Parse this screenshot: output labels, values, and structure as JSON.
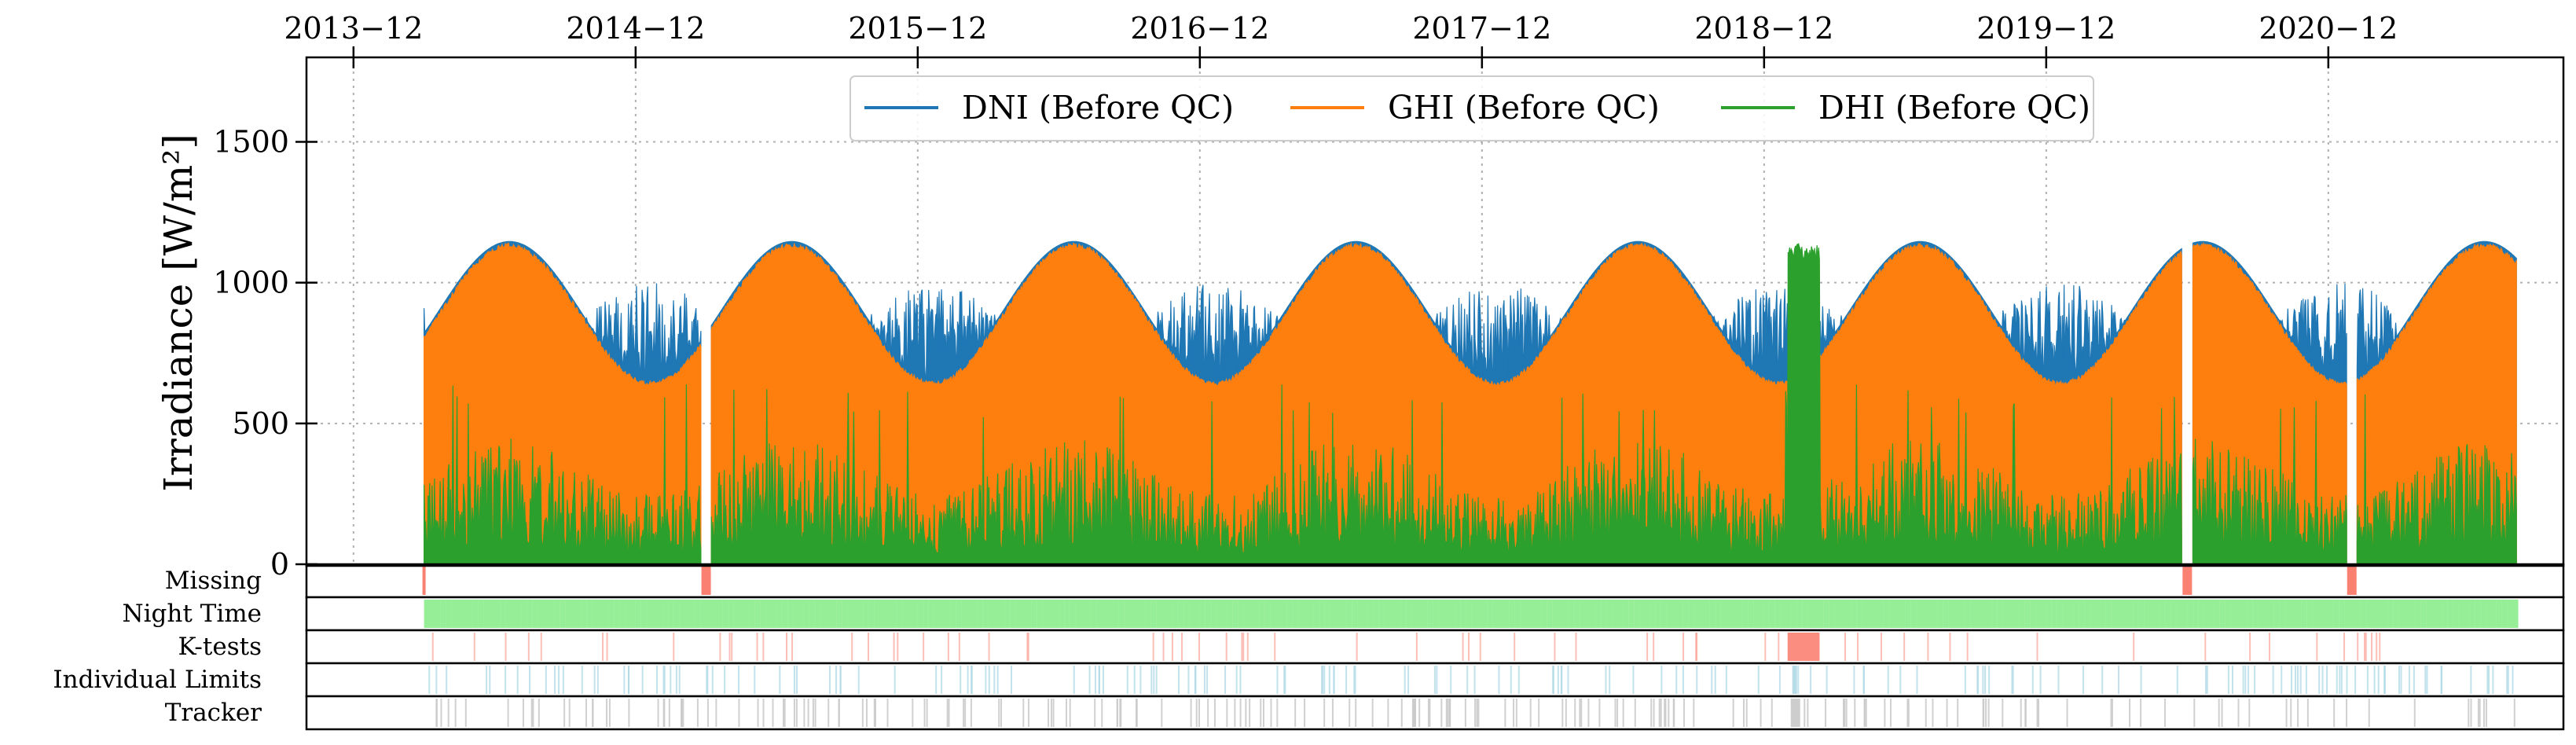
{
  "chart_data": {
    "type": "line",
    "x_axis": {
      "scale": "date",
      "ticks": [
        "2013-12",
        "2014-12",
        "2015-12",
        "2016-12",
        "2017-12",
        "2018-12",
        "2019-12",
        "2020-12"
      ],
      "tick_position": "top",
      "range": [
        "2013-10",
        "2021-10"
      ]
    },
    "y_axis": {
      "label": "Irradiance [W/m²]",
      "ticks": [
        0,
        500,
        1000,
        1500
      ],
      "ylim": [
        0,
        1800
      ]
    },
    "grid": true,
    "legend": {
      "placement": "top-center",
      "columns": 3
    },
    "series": [
      {
        "name": "DNI (Before QC)",
        "color": "#1f77b4",
        "summer_peak": 730,
        "winter_peak": 1000,
        "daily_low": 650
      },
      {
        "name": "GHI (Before QC)",
        "color": "#ff7f0e",
        "summer_peak": 1140,
        "winter_peak": 650
      },
      {
        "name": "DHI (Before QC)",
        "color": "#2ca02c",
        "typical_peak": 450,
        "max_spike": 1140
      }
    ],
    "data_range": [
      "2014-03",
      "2021-08"
    ],
    "gaps": [
      "2015-03",
      "2020-06",
      "2021-01"
    ],
    "qc_flags": [
      {
        "label": "Missing",
        "color": "#fa8072"
      },
      {
        "label": "Night Time",
        "color": "#90ee90"
      },
      {
        "label": "K-tests",
        "color": "#fa8072"
      },
      {
        "label": "Individual Limits",
        "color": "#add8e6"
      },
      {
        "label": "Tracker",
        "color": "#c8c8c8"
      }
    ]
  }
}
